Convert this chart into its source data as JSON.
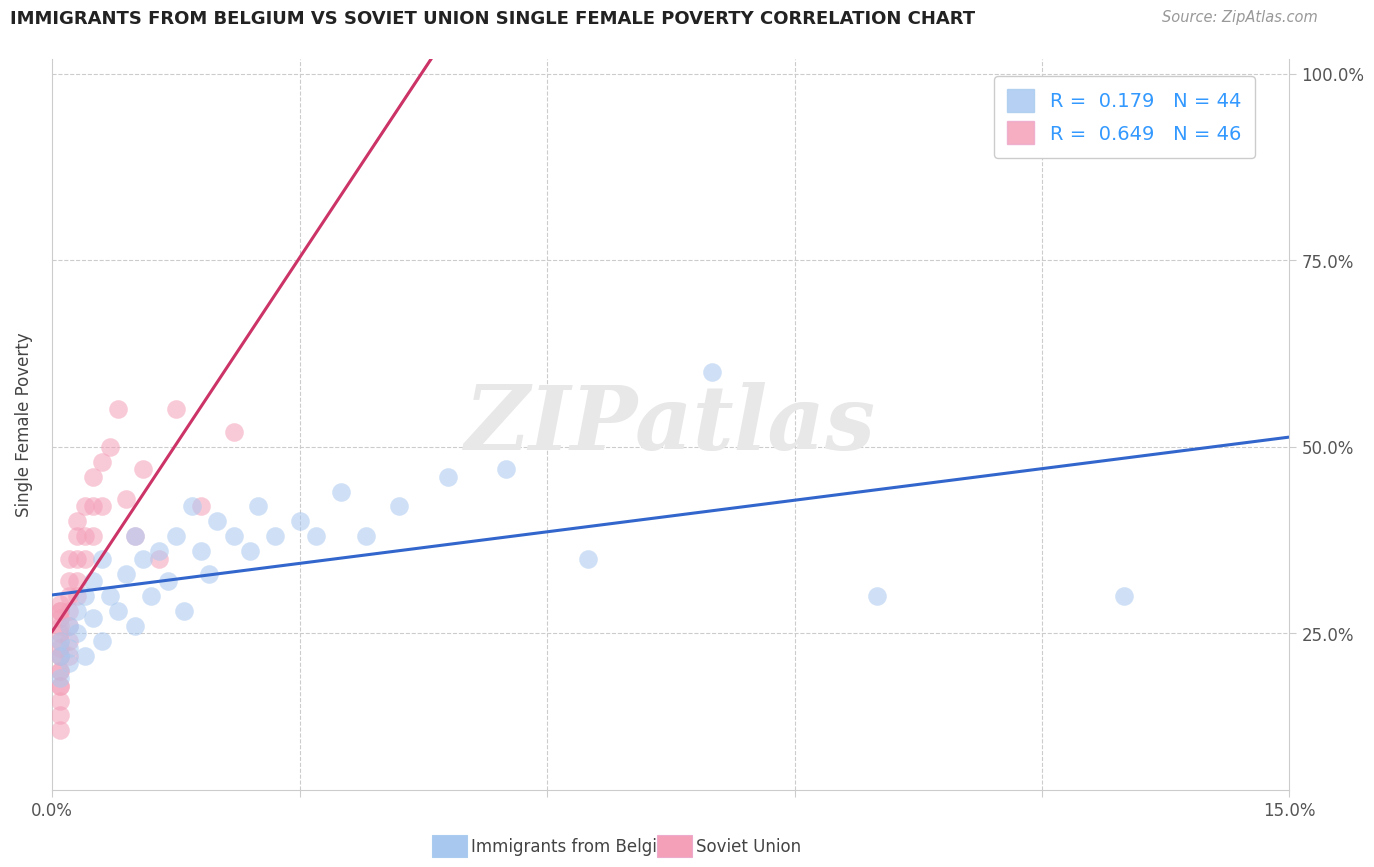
{
  "title": "IMMIGRANTS FROM BELGIUM VS SOVIET UNION SINGLE FEMALE POVERTY CORRELATION CHART",
  "source": "Source: ZipAtlas.com",
  "xlabel_belgium": "Immigrants from Belgium",
  "xlabel_soviet": "Soviet Union",
  "ylabel": "Single Female Poverty",
  "r_belgium": 0.179,
  "n_belgium": 44,
  "r_soviet": 0.649,
  "n_soviet": 46,
  "xlim": [
    0.0,
    0.15
  ],
  "ylim": [
    0.04,
    1.02
  ],
  "xticks": [
    0.0,
    0.03,
    0.06,
    0.09,
    0.12,
    0.15
  ],
  "xtick_labels": [
    "0.0%",
    "",
    "",
    "",
    "",
    "15.0%"
  ],
  "yticks": [
    0.25,
    0.5,
    0.75,
    1.0
  ],
  "ytick_labels": [
    "25.0%",
    "50.0%",
    "75.0%",
    "100.0%"
  ],
  "color_belgium": "#A8C8F0",
  "color_soviet": "#F4A0B8",
  "color_trend_belgium": "#3366CC",
  "color_trend_soviet": "#CC3366",
  "watermark_text": "ZIPatlas",
  "legend_text_color": "#3399FF",
  "belgium_x": [
    0.001,
    0.001,
    0.001,
    0.002,
    0.002,
    0.002,
    0.003,
    0.003,
    0.004,
    0.004,
    0.005,
    0.005,
    0.006,
    0.006,
    0.007,
    0.008,
    0.009,
    0.01,
    0.01,
    0.011,
    0.012,
    0.013,
    0.014,
    0.015,
    0.016,
    0.017,
    0.018,
    0.019,
    0.02,
    0.022,
    0.024,
    0.025,
    0.027,
    0.03,
    0.032,
    0.035,
    0.038,
    0.042,
    0.048,
    0.055,
    0.065,
    0.08,
    0.1,
    0.13
  ],
  "belgium_y": [
    0.22,
    0.24,
    0.19,
    0.23,
    0.21,
    0.26,
    0.28,
    0.25,
    0.3,
    0.22,
    0.27,
    0.32,
    0.24,
    0.35,
    0.3,
    0.28,
    0.33,
    0.38,
    0.26,
    0.35,
    0.3,
    0.36,
    0.32,
    0.38,
    0.28,
    0.42,
    0.36,
    0.33,
    0.4,
    0.38,
    0.36,
    0.42,
    0.38,
    0.4,
    0.38,
    0.44,
    0.38,
    0.42,
    0.46,
    0.47,
    0.35,
    0.6,
    0.3,
    0.3
  ],
  "soviet_x": [
    0.001,
    0.001,
    0.001,
    0.001,
    0.001,
    0.001,
    0.001,
    0.001,
    0.001,
    0.001,
    0.001,
    0.001,
    0.001,
    0.001,
    0.001,
    0.001,
    0.001,
    0.002,
    0.002,
    0.002,
    0.002,
    0.002,
    0.002,
    0.002,
    0.003,
    0.003,
    0.003,
    0.003,
    0.003,
    0.004,
    0.004,
    0.004,
    0.005,
    0.005,
    0.005,
    0.006,
    0.006,
    0.007,
    0.008,
    0.009,
    0.01,
    0.011,
    0.013,
    0.015,
    0.018,
    0.022
  ],
  "soviet_y": [
    0.12,
    0.14,
    0.16,
    0.18,
    0.18,
    0.2,
    0.2,
    0.22,
    0.22,
    0.23,
    0.24,
    0.25,
    0.26,
    0.27,
    0.28,
    0.28,
    0.29,
    0.22,
    0.24,
    0.26,
    0.28,
    0.3,
    0.32,
    0.35,
    0.3,
    0.32,
    0.35,
    0.38,
    0.4,
    0.35,
    0.38,
    0.42,
    0.38,
    0.42,
    0.46,
    0.42,
    0.48,
    0.5,
    0.55,
    0.43,
    0.38,
    0.47,
    0.35,
    0.55,
    0.42,
    0.52
  ],
  "grid_color": "#CCCCCC",
  "spine_color": "#CCCCCC"
}
